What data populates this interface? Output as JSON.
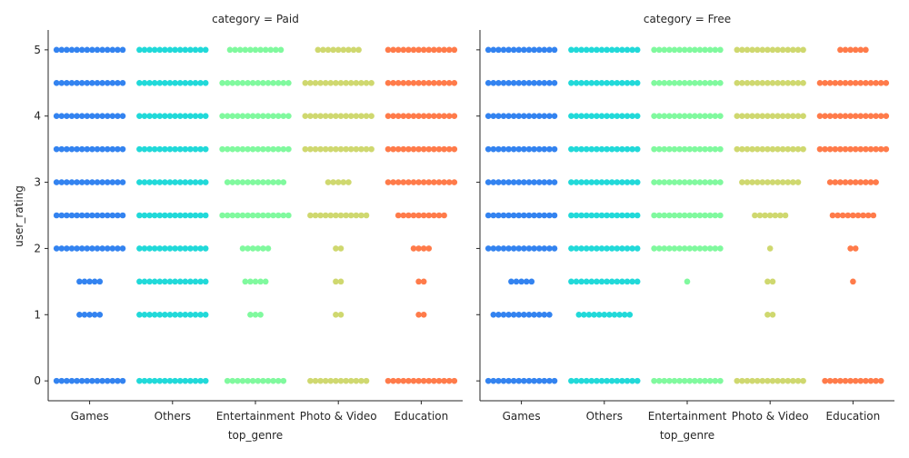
{
  "chart_data": [
    {
      "type": "scatter",
      "subtype": "swarm",
      "title": "category = Paid",
      "xlabel": "top_genre",
      "ylabel": "user_rating",
      "categories": [
        "Games",
        "Others",
        "Entertainment",
        "Photo & Video",
        "Education"
      ],
      "yticks": [
        0,
        1,
        2,
        3,
        4,
        5
      ],
      "ylim": [
        -0.3,
        5.3
      ],
      "grid": false,
      "series": [
        {
          "category": "Games",
          "color": "#3383f0",
          "levels": [
            5,
            4.5,
            4,
            3.5,
            3,
            2.5,
            2,
            1.5,
            1,
            0
          ],
          "counts": [
            14,
            14,
            14,
            14,
            14,
            14,
            14,
            5,
            5,
            14
          ]
        },
        {
          "category": "Others",
          "color": "#21d9d9",
          "levels": [
            5,
            4.5,
            4,
            3.5,
            3,
            2.5,
            2,
            1.5,
            1,
            0
          ],
          "counts": [
            14,
            14,
            14,
            14,
            14,
            14,
            14,
            14,
            14,
            14
          ]
        },
        {
          "category": "Entertainment",
          "color": "#80f99e",
          "levels": [
            5,
            4.5,
            4,
            3.5,
            3,
            2.5,
            2,
            1.5,
            1,
            0
          ],
          "counts": [
            11,
            14,
            14,
            14,
            12,
            14,
            6,
            5,
            3,
            12
          ]
        },
        {
          "category": "Photo & Video",
          "color": "#cfd86f",
          "levels": [
            5,
            4.5,
            4,
            3.5,
            3,
            2.5,
            2,
            1.5,
            1,
            0
          ],
          "counts": [
            9,
            14,
            14,
            14,
            5,
            12,
            2,
            2,
            2,
            12
          ]
        },
        {
          "category": "Education",
          "color": "#ff7b4a",
          "levels": [
            5,
            4.5,
            4,
            3.5,
            3,
            2.5,
            2,
            1.5,
            1,
            0
          ],
          "counts": [
            14,
            14,
            14,
            14,
            14,
            10,
            4,
            2,
            2,
            14
          ]
        }
      ]
    },
    {
      "type": "scatter",
      "subtype": "swarm",
      "title": "category = Free",
      "xlabel": "top_genre",
      "ylabel": "",
      "categories": [
        "Games",
        "Others",
        "Entertainment",
        "Photo & Video",
        "Education"
      ],
      "yticks": [
        0,
        1,
        2,
        3,
        4,
        5
      ],
      "ylim": [
        -0.3,
        5.3
      ],
      "grid": false,
      "series": [
        {
          "category": "Games",
          "color": "#3383f0",
          "levels": [
            5,
            4.5,
            4,
            3.5,
            3,
            2.5,
            2,
            1.5,
            1,
            0
          ],
          "counts": [
            14,
            14,
            14,
            14,
            14,
            14,
            14,
            5,
            12,
            14
          ]
        },
        {
          "category": "Others",
          "color": "#21d9d9",
          "levels": [
            5,
            4.5,
            4,
            3.5,
            3,
            2.5,
            2,
            1.5,
            1,
            0
          ],
          "counts": [
            14,
            14,
            14,
            14,
            14,
            14,
            14,
            14,
            11,
            14
          ]
        },
        {
          "category": "Entertainment",
          "color": "#80f99e",
          "levels": [
            5,
            4.5,
            4,
            3.5,
            3,
            2.5,
            2,
            1.5,
            1,
            0
          ],
          "counts": [
            14,
            14,
            14,
            14,
            14,
            14,
            14,
            1,
            0,
            14
          ]
        },
        {
          "category": "Photo & Video",
          "color": "#cfd86f",
          "levels": [
            5,
            4.5,
            4,
            3.5,
            3,
            2.5,
            2,
            1.5,
            1,
            0
          ],
          "counts": [
            14,
            14,
            14,
            14,
            12,
            7,
            1,
            2,
            2,
            14
          ]
        },
        {
          "category": "Education",
          "color": "#ff7b4a",
          "levels": [
            5,
            4.5,
            4,
            3.5,
            3,
            2.5,
            2,
            1.5,
            1,
            0
          ],
          "counts": [
            6,
            14,
            14,
            14,
            10,
            9,
            2,
            1,
            0,
            12
          ]
        }
      ]
    }
  ]
}
